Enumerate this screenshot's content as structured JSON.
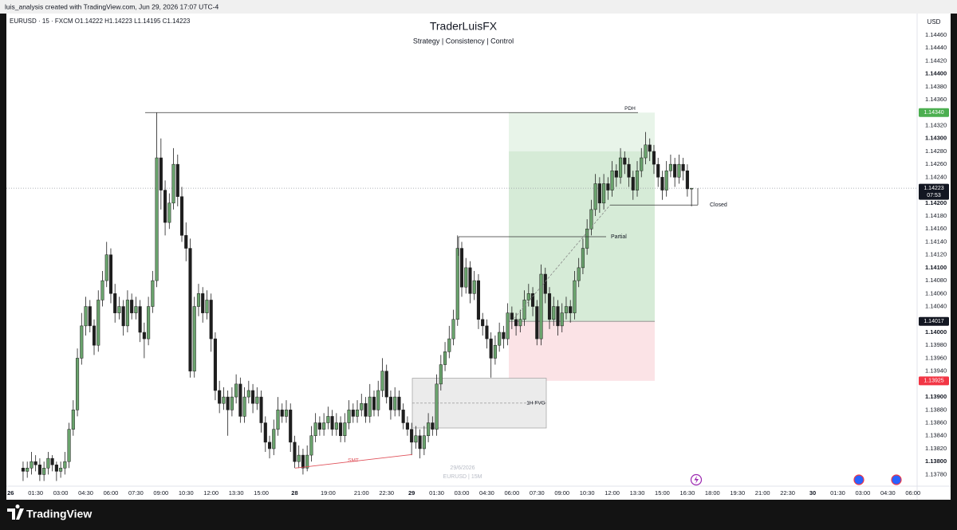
{
  "top_bar": "luis_analysis created with TradingView.com, Jun 29, 2026 17:07 UTC-4",
  "chart_data": {
    "type": "candlestick",
    "title": "TraderLuisFX",
    "subtitle": "Strategy | Consistency | Control",
    "legend_text": "EURUSD · 15 · FXCM   O1.14222  H1.14223  L1.14195  C1.14223",
    "currency": "USD",
    "up_color": "#6aa36d",
    "down_color": "#1e1e1e",
    "grid": false,
    "xlim": [
      -4,
      214
    ],
    "xticks": [
      {
        "value": -3,
        "label": "26"
      },
      {
        "value": 3,
        "label": "01:30"
      },
      {
        "value": 9,
        "label": "03:00"
      },
      {
        "value": 15,
        "label": "04:30"
      },
      {
        "value": 21,
        "label": "06:00"
      },
      {
        "value": 27,
        "label": "07:30"
      },
      {
        "value": 33,
        "label": "09:00"
      },
      {
        "value": 39,
        "label": "10:30"
      },
      {
        "value": 45,
        "label": "12:00"
      },
      {
        "value": 51,
        "label": "13:30"
      },
      {
        "value": 57,
        "label": "15:00"
      },
      {
        "value": 65,
        "label": "28"
      },
      {
        "value": 73,
        "label": "19:00"
      },
      {
        "value": 81,
        "label": "21:00"
      },
      {
        "value": 87,
        "label": "22:30"
      },
      {
        "value": 93,
        "label": "29"
      },
      {
        "value": 99,
        "label": "01:30"
      },
      {
        "value": 105,
        "label": "03:00"
      },
      {
        "value": 111,
        "label": "04:30"
      },
      {
        "value": 117,
        "label": "06:00"
      },
      {
        "value": 123,
        "label": "07:30"
      },
      {
        "value": 129,
        "label": "09:00"
      },
      {
        "value": 135,
        "label": "10:30"
      },
      {
        "value": 141,
        "label": "12:00"
      },
      {
        "value": 147,
        "label": "13:30"
      },
      {
        "value": 153,
        "label": "15:00"
      },
      {
        "value": 159,
        "label": "16:30"
      },
      {
        "value": 165,
        "label": "18:00"
      },
      {
        "value": 171,
        "label": "19:30"
      },
      {
        "value": 177,
        "label": "21:00"
      },
      {
        "value": 183,
        "label": "22:30"
      },
      {
        "value": 189,
        "label": "30"
      },
      {
        "value": 195,
        "label": "01:30"
      },
      {
        "value": 201,
        "label": "03:00"
      },
      {
        "value": 207,
        "label": "04:30"
      },
      {
        "value": 213,
        "label": "06:00"
      }
    ],
    "ylim": [
      1.13762,
      1.14492
    ],
    "yticks": [
      {
        "value": 1.1446,
        "label": "1.14460"
      },
      {
        "value": 1.1444,
        "label": "1.14440"
      },
      {
        "value": 1.1442,
        "label": "1.14420"
      },
      {
        "value": 1.144,
        "label": "1.14400"
      },
      {
        "value": 1.1438,
        "label": "1.14380"
      },
      {
        "value": 1.1436,
        "label": "1.14360"
      },
      {
        "value": 1.1432,
        "label": "1.14320"
      },
      {
        "value": 1.143,
        "label": "1.14300"
      },
      {
        "value": 1.1428,
        "label": "1.14280"
      },
      {
        "value": 1.1426,
        "label": "1.14260"
      },
      {
        "value": 1.1424,
        "label": "1.14240"
      },
      {
        "value": 1.142,
        "label": "1.14200"
      },
      {
        "value": 1.1418,
        "label": "1.14180"
      },
      {
        "value": 1.1416,
        "label": "1.14160"
      },
      {
        "value": 1.1414,
        "label": "1.14140"
      },
      {
        "value": 1.1412,
        "label": "1.14120"
      },
      {
        "value": 1.141,
        "label": "1.14100"
      },
      {
        "value": 1.1408,
        "label": "1.14080"
      },
      {
        "value": 1.1406,
        "label": "1.14060"
      },
      {
        "value": 1.1404,
        "label": "1.14040"
      },
      {
        "value": 1.14,
        "label": "1.14000"
      },
      {
        "value": 1.1398,
        "label": "1.13980"
      },
      {
        "value": 1.1396,
        "label": "1.13960"
      },
      {
        "value": 1.1394,
        "label": "1.13940"
      },
      {
        "value": 1.139,
        "label": "1.13900"
      },
      {
        "value": 1.1388,
        "label": "1.13880"
      },
      {
        "value": 1.1386,
        "label": "1.13860"
      },
      {
        "value": 1.1384,
        "label": "1.13840"
      },
      {
        "value": 1.1382,
        "label": "1.13820"
      },
      {
        "value": 1.138,
        "label": "1.13800"
      },
      {
        "value": 1.1378,
        "label": "1.13780"
      }
    ],
    "candles": [
      [
        1.1379,
        1.138,
        1.1377,
        1.13785
      ],
      [
        1.13785,
        1.138,
        1.13775,
        1.1379
      ],
      [
        1.1379,
        1.13815,
        1.1378,
        1.138
      ],
      [
        1.138,
        1.1381,
        1.13785,
        1.13795
      ],
      [
        1.13795,
        1.13805,
        1.1377,
        1.1378
      ],
      [
        1.1378,
        1.138,
        1.1377,
        1.1379
      ],
      [
        1.1379,
        1.13815,
        1.1378,
        1.13805
      ],
      [
        1.13805,
        1.1381,
        1.13785,
        1.13795
      ],
      [
        1.13795,
        1.138,
        1.1377,
        1.13785
      ],
      [
        1.13785,
        1.138,
        1.13775,
        1.1379
      ],
      [
        1.1379,
        1.13815,
        1.1378,
        1.138
      ],
      [
        1.138,
        1.1386,
        1.1379,
        1.1385
      ],
      [
        1.1385,
        1.13895,
        1.1384,
        1.1388
      ],
      [
        1.1388,
        1.13975,
        1.1387,
        1.1396
      ],
      [
        1.1396,
        1.1403,
        1.1395,
        1.1401
      ],
      [
        1.1401,
        1.14055,
        1.13995,
        1.1404
      ],
      [
        1.1404,
        1.1405,
        1.14,
        1.1401
      ],
      [
        1.1401,
        1.1402,
        1.13965,
        1.1398
      ],
      [
        1.1398,
        1.14065,
        1.1397,
        1.1405
      ],
      [
        1.1405,
        1.14095,
        1.1404,
        1.1408
      ],
      [
        1.1408,
        1.1414,
        1.1407,
        1.1412
      ],
      [
        1.1412,
        1.1413,
        1.14045,
        1.1406
      ],
      [
        1.1406,
        1.14075,
        1.14015,
        1.1403
      ],
      [
        1.1403,
        1.14055,
        1.1402,
        1.1404
      ],
      [
        1.1404,
        1.1405,
        1.13995,
        1.1401
      ],
      [
        1.1401,
        1.14065,
        1.14,
        1.1405
      ],
      [
        1.1405,
        1.1406,
        1.1402,
        1.1403
      ],
      [
        1.1403,
        1.14055,
        1.1402,
        1.1404
      ],
      [
        1.1404,
        1.1405,
        1.13985,
        1.14
      ],
      [
        1.14,
        1.14015,
        1.1396,
        1.1399
      ],
      [
        1.1399,
        1.14055,
        1.1398,
        1.1404
      ],
      [
        1.1404,
        1.14095,
        1.1403,
        1.1408
      ],
      [
        1.1408,
        1.1434,
        1.1407,
        1.1427
      ],
      [
        1.1427,
        1.143,
        1.1419,
        1.1422
      ],
      [
        1.1422,
        1.14235,
        1.1415,
        1.1417
      ],
      [
        1.1417,
        1.14215,
        1.1416,
        1.142
      ],
      [
        1.142,
        1.14285,
        1.1419,
        1.1426
      ],
      [
        1.1426,
        1.14275,
        1.14195,
        1.1421
      ],
      [
        1.1421,
        1.14225,
        1.1414,
        1.1415
      ],
      [
        1.1415,
        1.1417,
        1.1411,
        1.1413
      ],
      [
        1.1413,
        1.14145,
        1.1393,
        1.1394
      ],
      [
        1.1394,
        1.14055,
        1.1393,
        1.1404
      ],
      [
        1.1404,
        1.14075,
        1.14025,
        1.1406
      ],
      [
        1.1406,
        1.1407,
        1.14015,
        1.1403
      ],
      [
        1.1403,
        1.14065,
        1.1402,
        1.1405
      ],
      [
        1.1405,
        1.1406,
        1.1397,
        1.1399
      ],
      [
        1.1399,
        1.14,
        1.13895,
        1.1391
      ],
      [
        1.1391,
        1.13925,
        1.13875,
        1.1389
      ],
      [
        1.1389,
        1.13915,
        1.1388,
        1.139
      ],
      [
        1.139,
        1.1391,
        1.1384,
        1.1388
      ],
      [
        1.1388,
        1.13915,
        1.1387,
        1.139
      ],
      [
        1.139,
        1.13935,
        1.1389,
        1.1392
      ],
      [
        1.1392,
        1.1393,
        1.1386,
        1.1387
      ],
      [
        1.1387,
        1.13915,
        1.1386,
        1.139
      ],
      [
        1.139,
        1.13925,
        1.1389,
        1.1391
      ],
      [
        1.1391,
        1.1392,
        1.13875,
        1.1389
      ],
      [
        1.1389,
        1.13915,
        1.1388,
        1.139
      ],
      [
        1.139,
        1.1391,
        1.13845,
        1.1386
      ],
      [
        1.1386,
        1.1387,
        1.13815,
        1.1383
      ],
      [
        1.1383,
        1.1384,
        1.13805,
        1.1382
      ],
      [
        1.1382,
        1.13865,
        1.1381,
        1.1385
      ],
      [
        1.1385,
        1.139,
        1.1384,
        1.1388
      ],
      [
        1.1388,
        1.1389,
        1.1386,
        1.1387
      ],
      [
        1.1387,
        1.13895,
        1.1386,
        1.1388
      ],
      [
        1.1388,
        1.1389,
        1.13815,
        1.1383
      ],
      [
        1.1383,
        1.1384,
        1.1379,
        1.138
      ],
      [
        1.138,
        1.13825,
        1.1379,
        1.1381
      ],
      [
        1.1381,
        1.1382,
        1.1378,
        1.1379
      ],
      [
        1.1379,
        1.13825,
        1.13785,
        1.1381
      ],
      [
        1.1381,
        1.13855,
        1.138,
        1.1384
      ],
      [
        1.1384,
        1.13875,
        1.1383,
        1.1386
      ],
      [
        1.1386,
        1.1387,
        1.1384,
        1.1385
      ],
      [
        1.1385,
        1.13875,
        1.1384,
        1.1386
      ],
      [
        1.1386,
        1.13885,
        1.1385,
        1.1387
      ],
      [
        1.1387,
        1.1388,
        1.1384,
        1.1385
      ],
      [
        1.1385,
        1.13875,
        1.1384,
        1.1386
      ],
      [
        1.1386,
        1.1387,
        1.1383,
        1.1384
      ],
      [
        1.1384,
        1.13875,
        1.1383,
        1.1386
      ],
      [
        1.1386,
        1.13895,
        1.1385,
        1.1388
      ],
      [
        1.1388,
        1.1389,
        1.1386,
        1.1387
      ],
      [
        1.1387,
        1.13895,
        1.1386,
        1.1388
      ],
      [
        1.1388,
        1.13905,
        1.1387,
        1.1389
      ],
      [
        1.1389,
        1.139,
        1.1386,
        1.1387
      ],
      [
        1.1387,
        1.1392,
        1.1386,
        1.139
      ],
      [
        1.139,
        1.1391,
        1.1387,
        1.1388
      ],
      [
        1.1388,
        1.13925,
        1.1387,
        1.1391
      ],
      [
        1.1391,
        1.1396,
        1.139,
        1.1394
      ],
      [
        1.1394,
        1.1395,
        1.1389,
        1.139
      ],
      [
        1.139,
        1.1391,
        1.13865,
        1.1388
      ],
      [
        1.1388,
        1.13915,
        1.1387,
        1.139
      ],
      [
        1.139,
        1.1391,
        1.1387,
        1.1388
      ],
      [
        1.1388,
        1.1389,
        1.1385,
        1.1386
      ],
      [
        1.1386,
        1.1387,
        1.1384,
        1.1385
      ],
      [
        1.1385,
        1.1386,
        1.1381,
        1.1383
      ],
      [
        1.1383,
        1.13855,
        1.1382,
        1.1384
      ],
      [
        1.1384,
        1.1385,
        1.13805,
        1.1382
      ],
      [
        1.1382,
        1.13855,
        1.1381,
        1.1384
      ],
      [
        1.1384,
        1.13875,
        1.1383,
        1.1386
      ],
      [
        1.1386,
        1.1387,
        1.1384,
        1.1385
      ],
      [
        1.1385,
        1.13935,
        1.1384,
        1.1392
      ],
      [
        1.1392,
        1.13965,
        1.1391,
        1.1395
      ],
      [
        1.1395,
        1.13985,
        1.1394,
        1.1397
      ],
      [
        1.1397,
        1.1401,
        1.1396,
        1.1399
      ],
      [
        1.1399,
        1.14035,
        1.1398,
        1.1402
      ],
      [
        1.1402,
        1.1415,
        1.1401,
        1.1413
      ],
      [
        1.1413,
        1.1414,
        1.14055,
        1.1407
      ],
      [
        1.1407,
        1.14115,
        1.1406,
        1.141
      ],
      [
        1.141,
        1.1411,
        1.14045,
        1.1406
      ],
      [
        1.1406,
        1.14095,
        1.1405,
        1.1408
      ],
      [
        1.1408,
        1.1409,
        1.14005,
        1.1402
      ],
      [
        1.1402,
        1.1403,
        1.13995,
        1.1401
      ],
      [
        1.1401,
        1.1402,
        1.13975,
        1.1399
      ],
      [
        1.1399,
        1.14,
        1.1393,
        1.1396
      ],
      [
        1.1396,
        1.13995,
        1.1395,
        1.1398
      ],
      [
        1.1398,
        1.14015,
        1.1397,
        1.14
      ],
      [
        1.14,
        1.1401,
        1.13975,
        1.1399
      ],
      [
        1.1399,
        1.14045,
        1.1398,
        1.1403
      ],
      [
        1.1403,
        1.1404,
        1.14005,
        1.1402
      ],
      [
        1.1402,
        1.1403,
        1.13995,
        1.1401
      ],
      [
        1.1401,
        1.14035,
        1.14,
        1.1402
      ],
      [
        1.1402,
        1.14065,
        1.1401,
        1.1405
      ],
      [
        1.1405,
        1.14075,
        1.1404,
        1.1406
      ],
      [
        1.1406,
        1.1407,
        1.14025,
        1.1404
      ],
      [
        1.1404,
        1.1405,
        1.1398,
        1.1399
      ],
      [
        1.1399,
        1.14105,
        1.1398,
        1.1409
      ],
      [
        1.1409,
        1.141,
        1.14045,
        1.1406
      ],
      [
        1.1406,
        1.1407,
        1.14005,
        1.1402
      ],
      [
        1.1402,
        1.14055,
        1.1401,
        1.1404
      ],
      [
        1.1404,
        1.1405,
        1.13995,
        1.1401
      ],
      [
        1.1401,
        1.14045,
        1.14,
        1.1403
      ],
      [
        1.1403,
        1.14055,
        1.1402,
        1.1404
      ],
      [
        1.1404,
        1.1405,
        1.14015,
        1.1403
      ],
      [
        1.1403,
        1.14095,
        1.1402,
        1.1408
      ],
      [
        1.1408,
        1.14115,
        1.1407,
        1.141
      ],
      [
        1.141,
        1.14145,
        1.1409,
        1.1413
      ],
      [
        1.1413,
        1.14175,
        1.1412,
        1.1416
      ],
      [
        1.1416,
        1.14205,
        1.1415,
        1.1419
      ],
      [
        1.1419,
        1.14245,
        1.1418,
        1.1423
      ],
      [
        1.1423,
        1.1424,
        1.14185,
        1.142
      ],
      [
        1.142,
        1.14245,
        1.1419,
        1.1423
      ],
      [
        1.1423,
        1.1424,
        1.14205,
        1.1422
      ],
      [
        1.1422,
        1.14265,
        1.1421,
        1.1425
      ],
      [
        1.1425,
        1.1426,
        1.14225,
        1.1424
      ],
      [
        1.1424,
        1.14285,
        1.1423,
        1.1427
      ],
      [
        1.1427,
        1.1428,
        1.14245,
        1.1426
      ],
      [
        1.1426,
        1.1427,
        1.14225,
        1.1424
      ],
      [
        1.1424,
        1.1425,
        1.14205,
        1.1422
      ],
      [
        1.1422,
        1.14265,
        1.1421,
        1.1425
      ],
      [
        1.1425,
        1.14285,
        1.1424,
        1.1427
      ],
      [
        1.1427,
        1.1431,
        1.1426,
        1.1429
      ],
      [
        1.1429,
        1.143,
        1.14265,
        1.1428
      ],
      [
        1.1428,
        1.1429,
        1.14245,
        1.1426
      ],
      [
        1.1426,
        1.1427,
        1.14225,
        1.1424
      ],
      [
        1.1424,
        1.1425,
        1.14205,
        1.1422
      ],
      [
        1.1422,
        1.14265,
        1.1421,
        1.1425
      ],
      [
        1.1425,
        1.14275,
        1.1424,
        1.1426
      ],
      [
        1.1426,
        1.1427,
        1.14225,
        1.1424
      ],
      [
        1.1424,
        1.14275,
        1.1423,
        1.1426
      ],
      [
        1.1426,
        1.1427,
        1.14235,
        1.1425
      ],
      [
        1.1425,
        1.1426,
        1.1421,
        1.14222
      ],
      [
        1.14222,
        1.14223,
        1.14195,
        1.14223
      ]
    ],
    "current_price": {
      "value": 1.14223,
      "label": "1.14223",
      "countdown": "07:53"
    },
    "annotations": {
      "pdh": {
        "label": "PDH",
        "price": 1.1434
      },
      "position": {
        "target": {
          "value": 1.1434,
          "label": "1.14340",
          "color": "#4caf50"
        },
        "entry": {
          "value": 1.14017,
          "label": "1.14017",
          "color": "#131722"
        },
        "stop": {
          "value": 1.13925,
          "label": "1.13925",
          "color": "#f23645"
        },
        "reached": 1.1428
      },
      "fvg": {
        "label": "1H FVG",
        "high": 1.13929,
        "low": 1.13852
      },
      "partial": {
        "label": "Partial",
        "price": 1.14148
      },
      "closed": {
        "label": "Closed",
        "price": 1.14197
      },
      "smt": {
        "label": "SMT",
        "from": 1.1379,
        "to": 1.13811,
        "color": "#e0515a"
      }
    },
    "watermark": [
      "29/6/2026",
      "EURUSD | 15M"
    ]
  },
  "footer": "TradingView"
}
